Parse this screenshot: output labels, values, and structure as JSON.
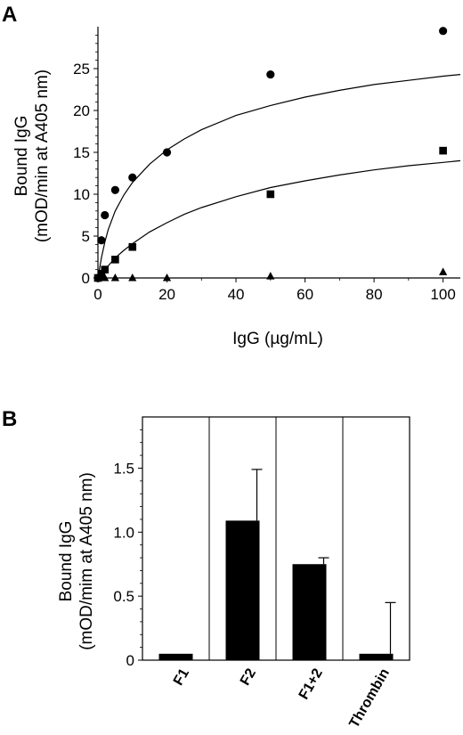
{
  "panel_a": {
    "letter": "A",
    "ylabel_line1": "Bound IgG",
    "ylabel_line2": "(mOD/min at A405 nm)",
    "xlabel": "IgG (µg/mL)"
  },
  "panel_b": {
    "letter": "B",
    "ylabel_line1": "Bound IgG",
    "ylabel_line2": "(mOD/mim at A405 nm)"
  },
  "chart_data": [
    {
      "type": "scatter",
      "panel": "A",
      "title": "",
      "xlabel": "IgG (µg/mL)",
      "ylabel": "Bound IgG (mOD/min at A405 nm)",
      "xlim": [
        0,
        105
      ],
      "ylim": [
        0,
        30
      ],
      "xticks": [
        0,
        20,
        40,
        60,
        80,
        100
      ],
      "yticks": [
        0,
        5,
        10,
        15,
        20,
        25
      ],
      "grid": false,
      "series": [
        {
          "marker": "circle",
          "x": [
            0,
            1,
            2,
            5,
            10,
            20,
            50,
            100
          ],
          "y": [
            0,
            4.5,
            7.5,
            10.5,
            12.0,
            15.0,
            24.3,
            29.5
          ],
          "fit": {
            "x": [
              0,
              1,
              2,
              3,
              5,
              7.5,
              10,
              15,
              20,
              25,
              30,
              40,
              50,
              60,
              70,
              80,
              90,
              100,
              105
            ],
            "y": [
              0,
              2.4,
              4.3,
              5.8,
              8.0,
              9.9,
              11.4,
              13.6,
              15.3,
              16.6,
              17.7,
              19.4,
              20.6,
              21.6,
              22.4,
              23.1,
              23.6,
              24.1,
              24.3
            ]
          }
        },
        {
          "marker": "square",
          "x": [
            0,
            1,
            2,
            5,
            10,
            50,
            100
          ],
          "y": [
            0,
            0.5,
            1.0,
            2.2,
            3.7,
            10.0,
            15.2
          ],
          "fit": {
            "x": [
              0,
              2,
              5,
              7.5,
              10,
              15,
              20,
              25,
              30,
              40,
              50,
              60,
              70,
              80,
              90,
              100,
              105
            ],
            "y": [
              0,
              1.0,
              2.4,
              3.3,
              4.1,
              5.5,
              6.6,
              7.6,
              8.4,
              9.7,
              10.8,
              11.6,
              12.3,
              12.9,
              13.4,
              13.8,
              14.0
            ]
          }
        },
        {
          "marker": "triangle",
          "x": [
            0,
            1,
            2,
            5,
            10,
            20,
            50,
            100
          ],
          "y": [
            0,
            0,
            0,
            0,
            0,
            0,
            0.2,
            0.7
          ]
        }
      ]
    },
    {
      "type": "bar",
      "panel": "B",
      "title": "",
      "xlabel": "",
      "ylabel": "Bound IgG (mOD/mim at A405 nm)",
      "ylim": [
        0,
        1.9
      ],
      "yticks": [
        0,
        0.5,
        1.0,
        1.5
      ],
      "ytick_labels": [
        "0",
        "0.5",
        "1.0",
        "1.5"
      ],
      "categories": [
        "F1",
        "F2",
        "F1+2",
        "Thrombin"
      ],
      "values": [
        0.05,
        1.09,
        0.75,
        0.05
      ],
      "error_upper": [
        0.0,
        0.4,
        0.05,
        0.4
      ],
      "bar_color": "#000000",
      "grid": false
    }
  ]
}
